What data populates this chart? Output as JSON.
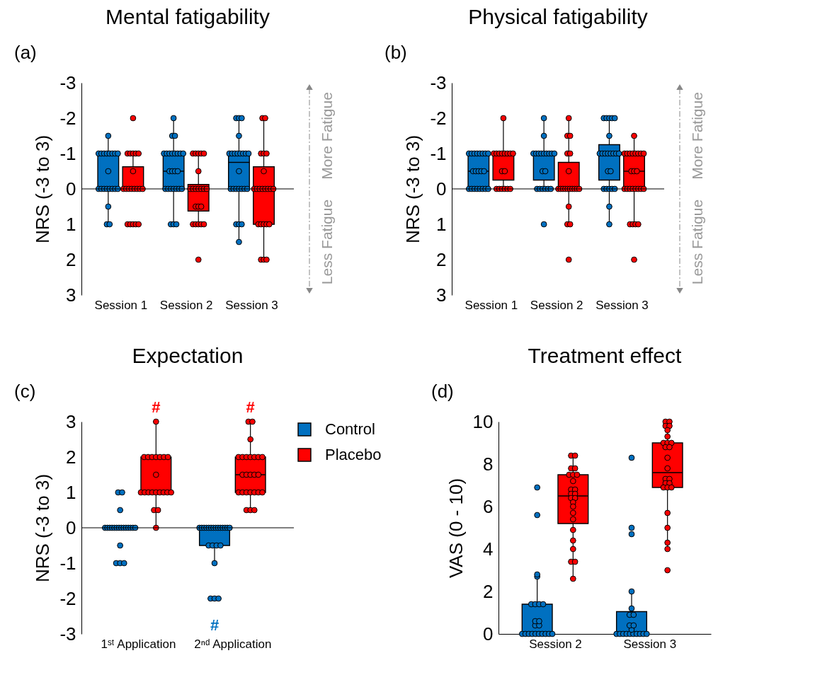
{
  "chart_data": [
    {
      "type": "box",
      "title": "Mental fatigability",
      "ylabel": "NRS (-3 to 3)",
      "categories": [
        "Session 1",
        "Session 2",
        "Session 3"
      ],
      "ylim": [
        3,
        -3
      ],
      "yticks": [
        -3,
        -2,
        -1,
        0,
        1,
        2,
        3
      ],
      "grid": false,
      "legend": false,
      "ref_lines": [
        {
          "axis": "y",
          "value": 0
        }
      ],
      "annotations": [
        "(a)",
        "More Fatigue",
        "Less Fatigue"
      ],
      "series": [
        {
          "color": "#0070c0",
          "boxes": [
            {
              "low": -1.5,
              "q1": -1,
              "median": -1,
              "q3": 0,
              "high": 1
            },
            {
              "low": -2,
              "q1": -1,
              "median": -0.5,
              "q3": 0,
              "high": 1
            },
            {
              "low": -2,
              "q1": -1,
              "median": -0.75,
              "q3": 0,
              "high": 1.5
            }
          ]
        },
        {
          "color": "#ff0000",
          "boxes": [
            {
              "low": -1,
              "q1": -0.625,
              "median": 0,
              "q3": 0,
              "high": 0
            },
            {
              "low": -1,
              "q1": -0.125,
              "median": 0,
              "q3": 0.625,
              "high": 1
            },
            {
              "low": -2,
              "q1": -0.625,
              "median": 0,
              "q3": 1,
              "high": 2
            }
          ]
        },
        {
          "type": "scatter",
          "color": "#0070c0",
          "x": [
            "Session 1",
            "Session 1",
            "Session 1",
            "Session 1",
            "Session 1",
            "Session 1",
            "Session 1",
            "Session 1",
            "Session 1",
            "Session 1",
            "Session 1",
            "Session 1",
            "Session 1",
            "Session 1",
            "Session 1",
            "Session 1",
            "Session 1",
            "Session 1",
            "Session 1",
            "Session 1",
            "Session 1",
            "Session 2",
            "Session 2",
            "Session 2",
            "Session 2",
            "Session 2",
            "Session 2",
            "Session 2",
            "Session 2",
            "Session 2",
            "Session 2",
            "Session 2",
            "Session 2",
            "Session 2",
            "Session 2",
            "Session 2",
            "Session 2",
            "Session 2",
            "Session 2",
            "Session 2",
            "Session 2",
            "Session 2",
            "Session 2",
            "Session 2",
            "Session 2",
            "Session 2",
            "Session 3",
            "Session 3",
            "Session 3",
            "Session 3",
            "Session 3",
            "Session 3",
            "Session 3",
            "Session 3",
            "Session 3",
            "Session 3",
            "Session 3",
            "Session 3",
            "Session 3",
            "Session 3",
            "Session 3",
            "Session 3",
            "Session 3",
            "Session 3",
            "Session 3",
            "Session 3",
            "Session 3",
            "Session 3",
            "Session 3",
            "Session 3"
          ],
          "values": [
            -1.5,
            -1,
            -1,
            -1,
            -1,
            -1,
            -1,
            -1,
            -1,
            -0.5,
            0,
            0,
            0,
            0,
            0,
            0,
            0,
            0,
            0.5,
            1,
            1,
            -2,
            -1.5,
            -1.5,
            -1,
            -1,
            -1,
            -1,
            -1,
            -1,
            -1,
            -1,
            -0.5,
            -0.5,
            -0.5,
            -0.5,
            0,
            0,
            0,
            0,
            0,
            0,
            0,
            1,
            1,
            1,
            -2,
            -2,
            -2,
            -1.5,
            -1,
            -1,
            -1,
            -1,
            -1,
            -1,
            -1,
            -1,
            -0.5,
            0,
            0,
            0,
            0,
            0,
            0,
            0,
            1,
            1,
            1,
            1.5
          ]
        },
        {
          "type": "scatter",
          "color": "#ff0000",
          "x": [
            "Session 1",
            "Session 1",
            "Session 1",
            "Session 1",
            "Session 1",
            "Session 1",
            "Session 1",
            "Session 1",
            "Session 1",
            "Session 1",
            "Session 1",
            "Session 1",
            "Session 1",
            "Session 1",
            "Session 1",
            "Session 1",
            "Session 1",
            "Session 1",
            "Session 1",
            "Session 1",
            "Session 2",
            "Session 2",
            "Session 2",
            "Session 2",
            "Session 2",
            "Session 2",
            "Session 2",
            "Session 2",
            "Session 2",
            "Session 2",
            "Session 2",
            "Session 2",
            "Session 2",
            "Session 2",
            "Session 2",
            "Session 2",
            "Session 2",
            "Session 2",
            "Session 2",
            "Session 2",
            "Session 2",
            "Session 2",
            "Session 3",
            "Session 3",
            "Session 3",
            "Session 3",
            "Session 3",
            "Session 3",
            "Session 3",
            "Session 3",
            "Session 3",
            "Session 3",
            "Session 3",
            "Session 3",
            "Session 3",
            "Session 3",
            "Session 3",
            "Session 3",
            "Session 3",
            "Session 3",
            "Session 3",
            "Session 3",
            "Session 3",
            "Session 3"
          ],
          "values": [
            -2,
            -1,
            -1,
            -1,
            -1,
            -1,
            -0.5,
            0,
            0,
            0,
            0,
            0,
            0,
            0,
            0,
            1,
            1,
            1,
            1,
            1,
            -1,
            -1,
            -1,
            -1,
            -1,
            -0.5,
            0,
            0,
            0,
            0,
            0,
            0,
            0,
            0.5,
            0.5,
            0.5,
            1,
            1,
            1,
            1,
            1,
            2,
            -2,
            -2,
            -1,
            -1,
            -1,
            -0.5,
            0,
            0,
            0,
            0,
            0,
            0,
            0,
            0,
            1,
            1,
            1,
            1,
            1,
            2,
            2,
            2
          ]
        }
      ]
    },
    {
      "type": "box",
      "title": "Physical fatigability",
      "ylabel": "NRS (-3 to 3)",
      "categories": [
        "Session 1",
        "Session 2",
        "Session 3"
      ],
      "ylim": [
        3,
        -3
      ],
      "yticks": [
        -3,
        -2,
        -1,
        0,
        1,
        2,
        3
      ],
      "grid": false,
      "legend": false,
      "ref_lines": [
        {
          "axis": "y",
          "value": 0
        }
      ],
      "annotations": [
        "(b)",
        "More Fatigue",
        "Less Fatigue"
      ],
      "series": [
        {
          "color": "#0070c0",
          "boxes": [
            {
              "low": -1,
              "q1": -1,
              "median": -0.5,
              "q3": 0,
              "high": 0
            },
            {
              "low": -2,
              "q1": -1,
              "median": -1,
              "q3": -0.25,
              "high": 0
            },
            {
              "low": -2,
              "q1": -1.25,
              "median": -1,
              "q3": -0.25,
              "high": 1
            }
          ]
        },
        {
          "color": "#ff0000",
          "boxes": [
            {
              "low": -2,
              "q1": -1,
              "median": -1,
              "q3": -0.25,
              "high": 0
            },
            {
              "low": -2,
              "q1": -0.75,
              "median": 0,
              "q3": 0,
              "high": 1
            },
            {
              "low": -1.5,
              "q1": -1,
              "median": -0.5,
              "q3": 0,
              "high": 1
            }
          ]
        },
        {
          "type": "scatter",
          "color": "#0070c0",
          "x": [
            "Session 1",
            "Session 1",
            "Session 1",
            "Session 1",
            "Session 1",
            "Session 1",
            "Session 1",
            "Session 1",
            "Session 1",
            "Session 1",
            "Session 1",
            "Session 1",
            "Session 1",
            "Session 1",
            "Session 1",
            "Session 1",
            "Session 1",
            "Session 1",
            "Session 1",
            "Session 1",
            "Session 1",
            "Session 2",
            "Session 2",
            "Session 2",
            "Session 2",
            "Session 2",
            "Session 2",
            "Session 2",
            "Session 2",
            "Session 2",
            "Session 2",
            "Session 2",
            "Session 2",
            "Session 2",
            "Session 2",
            "Session 2",
            "Session 2",
            "Session 2",
            "Session 2",
            "Session 2",
            "Session 2",
            "Session 3",
            "Session 3",
            "Session 3",
            "Session 3",
            "Session 3",
            "Session 3",
            "Session 3",
            "Session 3",
            "Session 3",
            "Session 3",
            "Session 3",
            "Session 3",
            "Session 3",
            "Session 3",
            "Session 3",
            "Session 3",
            "Session 3",
            "Session 3",
            "Session 3",
            "Session 3",
            "Session 3",
            "Session 3",
            "Session 3"
          ],
          "values": [
            -1,
            -1,
            -1,
            -1,
            -1,
            -1,
            -1,
            -1,
            -0.5,
            -0.5,
            -0.5,
            -0.5,
            -0.5,
            0,
            0,
            0,
            0,
            0,
            0,
            0,
            0,
            -2,
            -1.5,
            -1,
            -1,
            -1,
            -1,
            -1,
            -1,
            -1,
            -1,
            -1,
            -0.5,
            -0.5,
            0,
            0,
            0,
            0,
            0,
            0,
            1,
            -2,
            -2,
            -2,
            -2,
            -2,
            -1.5,
            -1,
            -1,
            -1,
            -1,
            -1,
            -1,
            -1,
            -1,
            -0.5,
            -0.5,
            0,
            0,
            0,
            0,
            0,
            0.5,
            1
          ]
        },
        {
          "type": "scatter",
          "color": "#ff0000",
          "x": [
            "Session 1",
            "Session 1",
            "Session 1",
            "Session 1",
            "Session 1",
            "Session 1",
            "Session 1",
            "Session 1",
            "Session 1",
            "Session 1",
            "Session 1",
            "Session 1",
            "Session 1",
            "Session 1",
            "Session 1",
            "Session 1",
            "Session 1",
            "Session 2",
            "Session 2",
            "Session 2",
            "Session 2",
            "Session 2",
            "Session 2",
            "Session 2",
            "Session 2",
            "Session 2",
            "Session 2",
            "Session 2",
            "Session 2",
            "Session 2",
            "Session 2",
            "Session 2",
            "Session 2",
            "Session 2",
            "Session 2",
            "Session 2",
            "Session 2",
            "Session 3",
            "Session 3",
            "Session 3",
            "Session 3",
            "Session 3",
            "Session 3",
            "Session 3",
            "Session 3",
            "Session 3",
            "Session 3",
            "Session 3",
            "Session 3",
            "Session 3",
            "Session 3",
            "Session 3",
            "Session 3",
            "Session 3",
            "Session 3",
            "Session 3",
            "Session 3",
            "Session 3",
            "Session 3",
            "Session 3",
            "Session 3",
            "Session 3"
          ],
          "values": [
            -2,
            -1,
            -1,
            -1,
            -1,
            -1,
            -1,
            -1,
            -1,
            -0.5,
            -0.5,
            0,
            0,
            0,
            0,
            0,
            0,
            -2,
            -1.5,
            -1.5,
            -1,
            -1,
            -0.5,
            0,
            0,
            0,
            0,
            0,
            0,
            0,
            0,
            0,
            0,
            0.5,
            1,
            1,
            2,
            -1.5,
            -1,
            -1,
            -1,
            -1,
            -1,
            -1,
            -1,
            -1,
            -0.5,
            -0.5,
            -0.5,
            0,
            0,
            0,
            0,
            0,
            0,
            0,
            0,
            1,
            1,
            1,
            1,
            2
          ]
        }
      ]
    },
    {
      "type": "box",
      "title": "Expectation",
      "ylabel": "NRS (-3 to 3)",
      "categories": [
        "1ˢᵗ Application",
        "2ⁿᵈ Application"
      ],
      "ylim": [
        -3,
        3
      ],
      "yticks": [
        -3,
        -2,
        -1,
        0,
        1,
        2,
        3
      ],
      "grid": false,
      "legend": "right",
      "ref_lines": [
        {
          "axis": "y",
          "value": 0
        }
      ],
      "annotations": [
        "(c)",
        "#",
        "#",
        "#"
      ],
      "series": [
        {
          "name": "Control",
          "color": "#0070c0",
          "boxes": [
            {
              "low": 0,
              "q1": 0,
              "median": 0,
              "q3": 0.05,
              "high": 0.05
            },
            {
              "low": -1,
              "q1": -0.5,
              "median": 0,
              "q3": 0,
              "high": 0
            }
          ]
        },
        {
          "name": "Placebo",
          "color": "#ff0000",
          "boxes": [
            {
              "low": 0,
              "q1": 1,
              "median": 1,
              "q3": 2,
              "high": 3
            },
            {
              "low": 0.5,
              "q1": 1,
              "median": 1.5,
              "q3": 2,
              "high": 3
            }
          ]
        },
        {
          "type": "scatter",
          "color": "#0070c0",
          "x": [
            "1ˢᵗ Application",
            "1ˢᵗ Application",
            "1ˢᵗ Application",
            "1ˢᵗ Application",
            "1ˢᵗ Application",
            "1ˢᵗ Application",
            "1ˢᵗ Application",
            "1ˢᵗ Application",
            "1ˢᵗ Application",
            "1ˢᵗ Application",
            "1ˢᵗ Application",
            "1ˢᵗ Application",
            "1ˢᵗ Application",
            "1ˢᵗ Application",
            "1ˢᵗ Application",
            "1ˢᵗ Application",
            "1ˢᵗ Application",
            "1ˢᵗ Application",
            "1ˢᵗ Application",
            "1ˢᵗ Application",
            "1ˢᵗ Application",
            "2ⁿᵈ Application",
            "2ⁿᵈ Application",
            "2ⁿᵈ Application",
            "2ⁿᵈ Application",
            "2ⁿᵈ Application",
            "2ⁿᵈ Application",
            "2ⁿᵈ Application",
            "2ⁿᵈ Application",
            "2ⁿᵈ Application",
            "2ⁿᵈ Application",
            "2ⁿᵈ Application",
            "2ⁿᵈ Application",
            "2ⁿᵈ Application",
            "2ⁿᵈ Application",
            "2ⁿᵈ Application",
            "2ⁿᵈ Application",
            "2ⁿᵈ Application",
            "2ⁿᵈ Application",
            "2ⁿᵈ Application",
            "2ⁿᵈ Application",
            "2ⁿᵈ Application",
            "2ⁿᵈ Application"
          ],
          "values": [
            1,
            1,
            0.5,
            0,
            0,
            0,
            0,
            0,
            0,
            0,
            0,
            0,
            0,
            0,
            0,
            0,
            0,
            -0.5,
            -1,
            -1,
            -1,
            0,
            0,
            0,
            0,
            0,
            0,
            0,
            0,
            0,
            0,
            0,
            0,
            0,
            0,
            -0.5,
            -0.5,
            -0.5,
            -0.5,
            -1,
            -2,
            -2,
            -2
          ]
        },
        {
          "type": "scatter",
          "color": "#ff0000",
          "x": [
            "1ˢᵗ Application",
            "1ˢᵗ Application",
            "1ˢᵗ Application",
            "1ˢᵗ Application",
            "1ˢᵗ Application",
            "1ˢᵗ Application",
            "1ˢᵗ Application",
            "1ˢᵗ Application",
            "1ˢᵗ Application",
            "1ˢᵗ Application",
            "1ˢᵗ Application",
            "1ˢᵗ Application",
            "1ˢᵗ Application",
            "1ˢᵗ Application",
            "1ˢᵗ Application",
            "1ˢᵗ Application",
            "1ˢᵗ Application",
            "1ˢᵗ Application",
            "1ˢᵗ Application",
            "1ˢᵗ Application",
            "1ˢᵗ Application",
            "2ⁿᵈ Application",
            "2ⁿᵈ Application",
            "2ⁿᵈ Application",
            "2ⁿᵈ Application",
            "2ⁿᵈ Application",
            "2ⁿᵈ Application",
            "2ⁿᵈ Application",
            "2ⁿᵈ Application",
            "2ⁿᵈ Application",
            "2ⁿᵈ Application",
            "2ⁿᵈ Application",
            "2ⁿᵈ Application",
            "2ⁿᵈ Application",
            "2ⁿᵈ Application",
            "2ⁿᵈ Application",
            "2ⁿᵈ Application",
            "2ⁿᵈ Application",
            "2ⁿᵈ Application",
            "2ⁿᵈ Application",
            "2ⁿᵈ Application",
            "2ⁿᵈ Application",
            "2ⁿᵈ Application",
            "2ⁿᵈ Application",
            "2ⁿᵈ Application",
            "2ⁿᵈ Application"
          ],
          "values": [
            3,
            2,
            2,
            2,
            2,
            2,
            2,
            2,
            1.5,
            1,
            1,
            1,
            1,
            1,
            1,
            1,
            1,
            1,
            0.5,
            0.5,
            0,
            3,
            3,
            2.5,
            2,
            2,
            2,
            2,
            2,
            2,
            2,
            1.5,
            1.5,
            1.5,
            1.5,
            1.5,
            1,
            1,
            1,
            1,
            1,
            1,
            1,
            0.5,
            0.5,
            0.5
          ]
        }
      ]
    },
    {
      "type": "box",
      "title": "Treatment effect",
      "ylabel": "VAS (0 - 10)",
      "categories": [
        "Session 2",
        "Session 3"
      ],
      "ylim": [
        0,
        10
      ],
      "yticks": [
        0,
        2,
        4,
        6,
        8,
        10
      ],
      "grid": false,
      "legend": false,
      "annotations": [
        "(d)"
      ],
      "series": [
        {
          "color": "#0070c0",
          "boxes": [
            {
              "low": 0,
              "q1": 0,
              "median": 0,
              "q3": 1.4,
              "high": 2.8
            },
            {
              "low": 0,
              "q1": 0,
              "median": 0,
              "q3": 1.05,
              "high": 2
            }
          ]
        },
        {
          "color": "#ff0000",
          "boxes": [
            {
              "low": 2.6,
              "q1": 5.2,
              "median": 6.5,
              "q3": 7.5,
              "high": 8.4
            },
            {
              "low": 4,
              "q1": 6.9,
              "median": 7.6,
              "q3": 9,
              "high": 10
            }
          ]
        },
        {
          "type": "scatter",
          "color": "#0070c0",
          "x": [
            "Session 2",
            "Session 2",
            "Session 2",
            "Session 2",
            "Session 2",
            "Session 2",
            "Session 2",
            "Session 2",
            "Session 2",
            "Session 2",
            "Session 2",
            "Session 2",
            "Session 2",
            "Session 2",
            "Session 2",
            "Session 2",
            "Session 2",
            "Session 2",
            "Session 2",
            "Session 2",
            "Session 2",
            "Session 2",
            "Session 3",
            "Session 3",
            "Session 3",
            "Session 3",
            "Session 3",
            "Session 3",
            "Session 3",
            "Session 3",
            "Session 3",
            "Session 3",
            "Session 3",
            "Session 3",
            "Session 3",
            "Session 3",
            "Session 3",
            "Session 3",
            "Session 3",
            "Session 3",
            "Session 3",
            "Session 3"
          ],
          "values": [
            0,
            0,
            0,
            0,
            0,
            0,
            0,
            0,
            0,
            0,
            0.4,
            0.4,
            0.6,
            0.6,
            1.4,
            1.4,
            1.4,
            1.4,
            2.7,
            2.8,
            5.6,
            6.9,
            0,
            0,
            0,
            0,
            0,
            0,
            0,
            0,
            0,
            0,
            0.2,
            0.4,
            0.4,
            0.9,
            0.9,
            1.2,
            2,
            4.7,
            5,
            8.3
          ]
        },
        {
          "type": "scatter",
          "color": "#ff0000",
          "x": [
            "Session 2",
            "Session 2",
            "Session 2",
            "Session 2",
            "Session 2",
            "Session 2",
            "Session 2",
            "Session 2",
            "Session 2",
            "Session 2",
            "Session 2",
            "Session 2",
            "Session 2",
            "Session 2",
            "Session 2",
            "Session 2",
            "Session 2",
            "Session 2",
            "Session 2",
            "Session 2",
            "Session 2",
            "Session 2",
            "Session 2",
            "Session 2",
            "Session 3",
            "Session 3",
            "Session 3",
            "Session 3",
            "Session 3",
            "Session 3",
            "Session 3",
            "Session 3",
            "Session 3",
            "Session 3",
            "Session 3",
            "Session 3",
            "Session 3",
            "Session 3",
            "Session 3",
            "Session 3",
            "Session 3",
            "Session 3",
            "Session 3",
            "Session 3",
            "Session 3",
            "Session 3",
            "Session 3",
            "Session 3",
            "Session 3"
          ],
          "values": [
            8.4,
            8.4,
            7.8,
            7.8,
            7.5,
            7.5,
            7.5,
            7.2,
            6.8,
            6.8,
            6.6,
            6.6,
            6.4,
            6.4,
            6.2,
            6,
            5.7,
            5.4,
            4.9,
            4.4,
            4,
            3.4,
            3.4,
            2.6,
            10,
            10,
            9.8,
            9.8,
            9.6,
            9.3,
            9,
            9,
            9,
            8.8,
            8.8,
            8.3,
            7.8,
            7.3,
            7.3,
            7.1,
            7.1,
            6.9,
            6.9,
            6.9,
            5.7,
            5,
            4.3,
            4,
            3
          ]
        }
      ]
    }
  ]
}
